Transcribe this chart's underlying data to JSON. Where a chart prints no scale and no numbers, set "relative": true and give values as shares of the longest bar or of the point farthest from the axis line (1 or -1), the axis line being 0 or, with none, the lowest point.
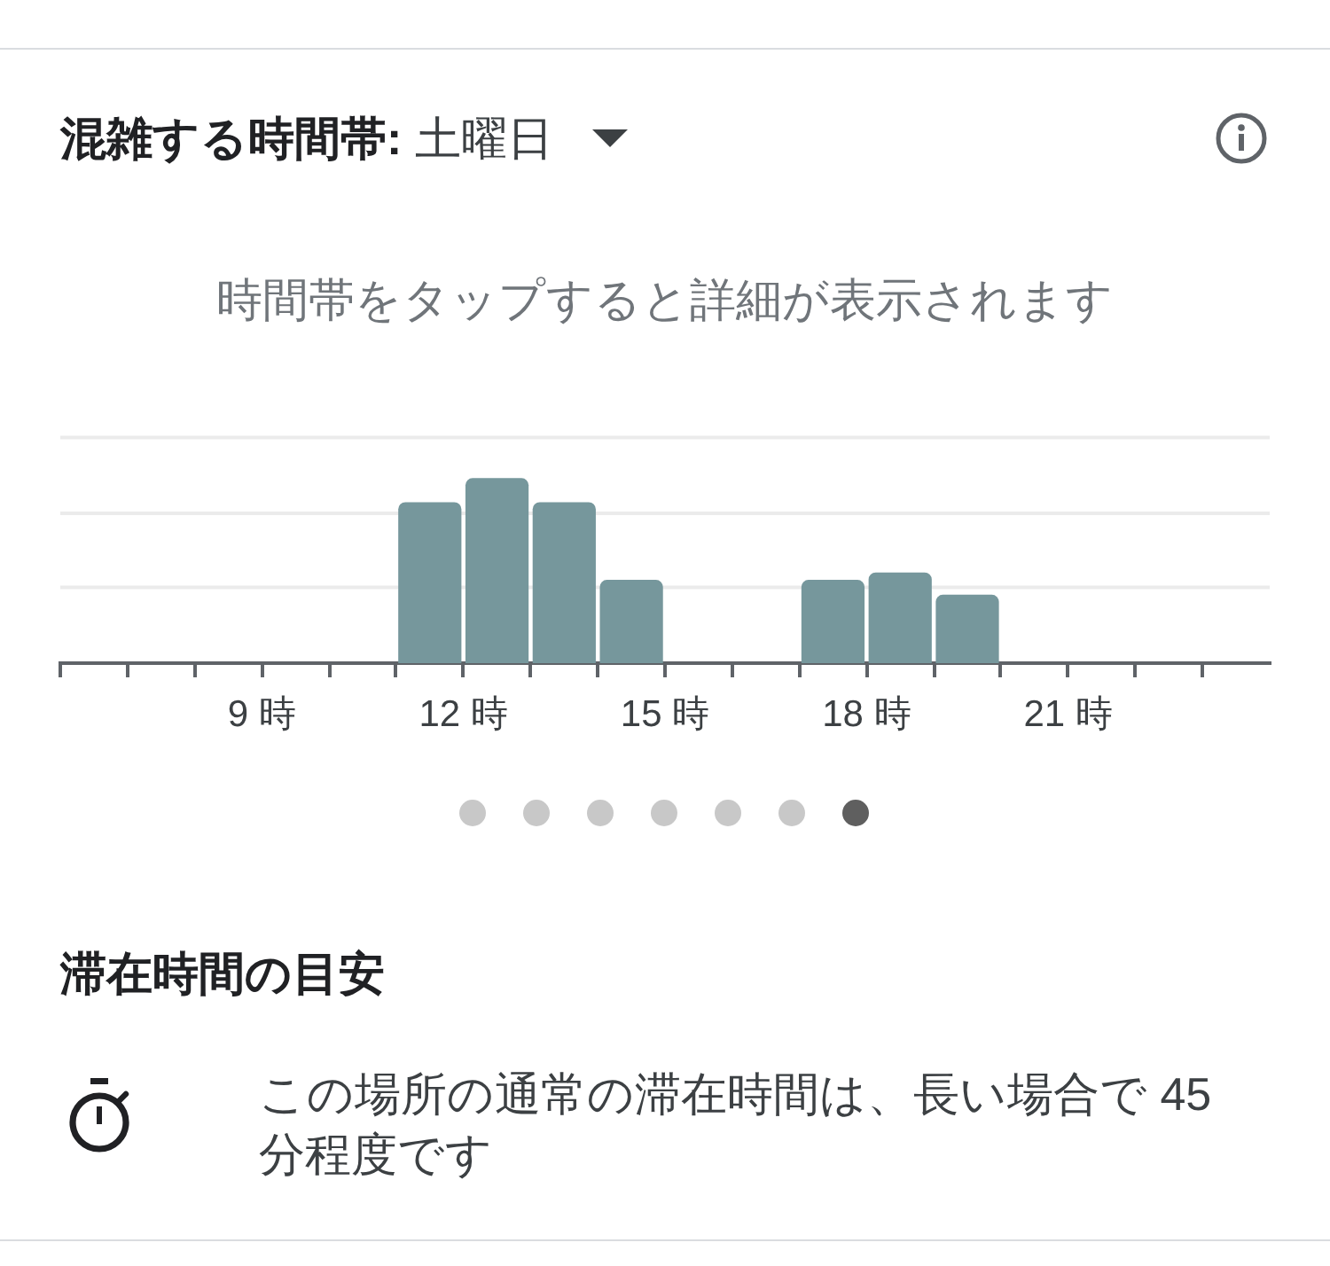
{
  "chart_data": [
    {
      "type": "bar",
      "title": "混雑する時間帯: 土曜日",
      "subtitle": "時間帯をタップすると詳細が表示されます",
      "x": [
        6.5,
        7.5,
        8.5,
        9.5,
        10.5,
        11.5,
        12.5,
        13.5,
        14.5,
        15.5,
        16.5,
        17.5,
        18.5,
        19.5,
        20.5,
        21.5,
        22.5,
        23.5
      ],
      "values": [
        0,
        0,
        0,
        0,
        0,
        0.87,
        1,
        0.87,
        0.45,
        0,
        0,
        0.45,
        0.49,
        0.37,
        0,
        0,
        0,
        0
      ],
      "color": "#76979c",
      "relative": true,
      "xlim": [
        6,
        24
      ],
      "xticks": [
        {
          "value": 6,
          "label": null
        },
        {
          "value": 7,
          "label": null
        },
        {
          "value": 8,
          "label": null
        },
        {
          "value": 9,
          "label": "9 時"
        },
        {
          "value": 10,
          "label": null
        },
        {
          "value": 11,
          "label": null
        },
        {
          "value": 12,
          "label": "12 時"
        },
        {
          "value": 13,
          "label": null
        },
        {
          "value": 14,
          "label": null
        },
        {
          "value": 15,
          "label": "15 時"
        },
        {
          "value": 16,
          "label": null
        },
        {
          "value": 17,
          "label": null
        },
        {
          "value": 18,
          "label": "18 時"
        },
        {
          "value": 19,
          "label": null
        },
        {
          "value": 20,
          "label": null
        },
        {
          "value": 21,
          "label": "21 時"
        },
        {
          "value": 22,
          "label": null
        },
        {
          "value": 23,
          "label": null
        }
      ],
      "ref_lines": [
        {
          "axis": "y",
          "value": 0.41,
          "color": "#ebebeb"
        },
        {
          "axis": "y",
          "value": 0.81,
          "color": "#ebebeb"
        },
        {
          "axis": "y",
          "value": 1.22,
          "color": "#ebebeb"
        }
      ]
    },
    {
      "type": "other",
      "title": "滞在時間の目安",
      "annotations": [
        "この場所の通常の滞在時間は、長い場合で 45 分程度です"
      ]
    }
  ]
}
